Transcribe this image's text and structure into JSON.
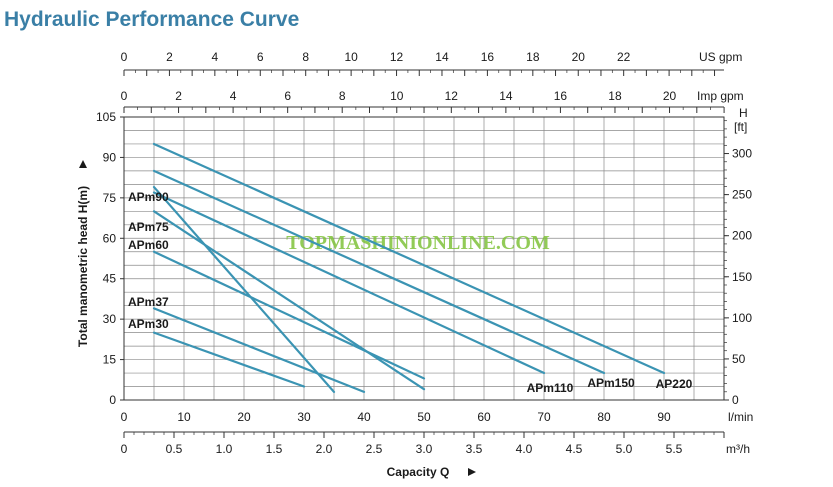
{
  "title": "Hydraulic Performance Curve",
  "watermark": "TOPMASHINIONLINE.COM",
  "colors": {
    "title": "#3a7fa6",
    "curve": "#3b94b3",
    "grid": "#8a8a8a",
    "watermark": "#7fc23a"
  },
  "axes": {
    "us_gpm": {
      "unit": "US gpm",
      "ticks": [
        "0",
        "2",
        "4",
        "6",
        "8",
        "10",
        "12",
        "14",
        "16",
        "18",
        "20",
        "22"
      ]
    },
    "imp_gpm": {
      "unit": "Imp gpm",
      "ticks": [
        "0",
        "2",
        "4",
        "6",
        "8",
        "10",
        "12",
        "14",
        "16",
        "18",
        "20"
      ]
    },
    "lmin": {
      "unit": "l/min",
      "ticks": [
        "0",
        "10",
        "20",
        "30",
        "40",
        "50",
        "60",
        "70",
        "80",
        "90"
      ]
    },
    "m3h": {
      "unit": "m³/h",
      "ticks": [
        "0",
        "0.5",
        "1.0",
        "1.5",
        "2.0",
        "2.5",
        "3.0",
        "3.5",
        "4.0",
        "4.5",
        "5.0",
        "5.5"
      ]
    },
    "head_m": {
      "label": "Total manometric head H(m)",
      "ticks": [
        "0",
        "15",
        "30",
        "45",
        "60",
        "75",
        "90",
        "105"
      ]
    },
    "head_ft": {
      "label_top": "H",
      "unit": "[ft]",
      "ticks": [
        "0",
        "50",
        "100",
        "150",
        "200",
        "250",
        "300"
      ]
    },
    "capacity_label": "Capacity Q"
  },
  "chart_data": {
    "type": "line",
    "title": "Hydraulic Performance Curve",
    "xlabel": "Capacity Q",
    "x_unit": "l/min",
    "ylabel": "Total manometric head H(m)",
    "y_unit": "m",
    "xlim": [
      0,
      100
    ],
    "ylim": [
      0,
      105
    ],
    "grid": true,
    "series": [
      {
        "name": "APm30",
        "x": [
          5,
          30
        ],
        "y": [
          25,
          5
        ]
      },
      {
        "name": "APm37",
        "x": [
          5,
          40
        ],
        "y": [
          34,
          3
        ]
      },
      {
        "name": "APm60",
        "x": [
          5,
          50
        ],
        "y": [
          55,
          8
        ]
      },
      {
        "name": "APm75",
        "x": [
          5,
          50
        ],
        "y": [
          70,
          4
        ]
      },
      {
        "name": "APm90",
        "x": [
          5,
          35
        ],
        "y": [
          79,
          3
        ]
      },
      {
        "name": "APm110",
        "x": [
          5,
          70
        ],
        "y": [
          77,
          10
        ]
      },
      {
        "name": "APm150",
        "x": [
          5,
          80
        ],
        "y": [
          85,
          10
        ]
      },
      {
        "name": "AP220",
        "x": [
          5,
          90
        ],
        "y": [
          95,
          10
        ]
      }
    ]
  }
}
